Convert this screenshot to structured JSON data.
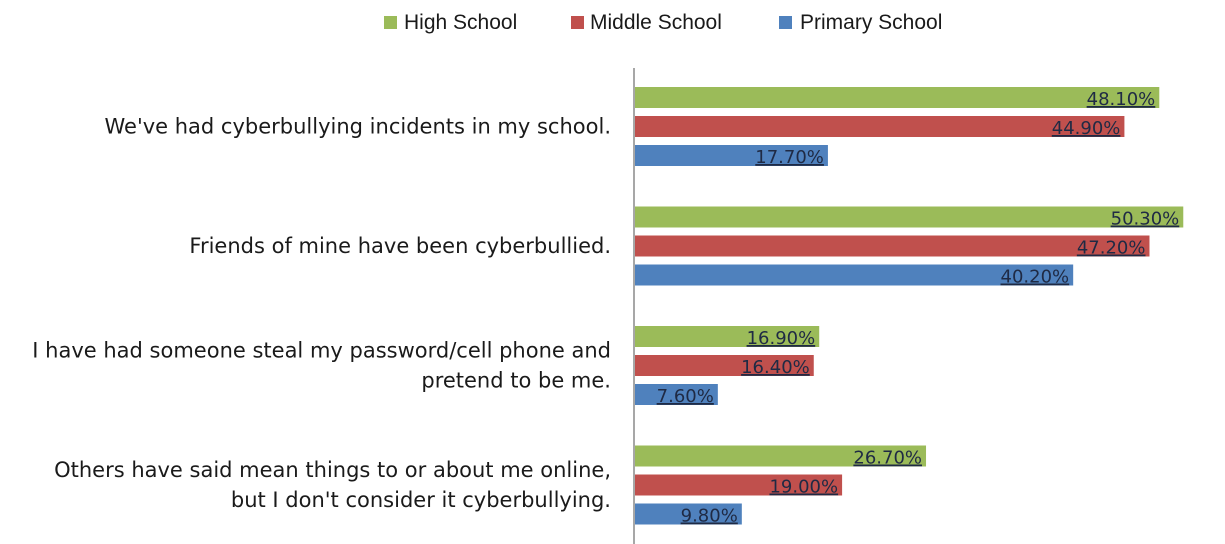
{
  "chart_data": {
    "type": "bar",
    "orientation": "horizontal",
    "categories": [
      [
        "We've had cyberbullying incidents in my school."
      ],
      [
        "Friends of mine have been cyberbullied."
      ],
      [
        "I have had someone steal my password/cell phone and",
        "pretend to be me."
      ],
      [
        "Others have said mean things to or about me online,",
        "but I don't consider it cyberbullying."
      ]
    ],
    "series": [
      {
        "name": "High School",
        "color": "#9bbb59",
        "values": [
          48.1,
          50.3,
          16.9,
          26.7
        ],
        "labels": [
          "48.10%",
          "50.30%",
          "16.90%",
          "26.70%"
        ]
      },
      {
        "name": "Middle School",
        "color": "#c0504d",
        "values": [
          44.9,
          47.2,
          16.4,
          19.0
        ],
        "labels": [
          "44.90%",
          "47.20%",
          "16.40%",
          "19.00%"
        ]
      },
      {
        "name": "Primary School",
        "color": "#4f81bd",
        "values": [
          17.7,
          40.2,
          7.6,
          9.8
        ],
        "labels": [
          "17.70%",
          "40.20%",
          "7.60%",
          "9.80%"
        ]
      }
    ],
    "legend_position": "top",
    "grid": false,
    "xlim": [
      0,
      55
    ]
  }
}
